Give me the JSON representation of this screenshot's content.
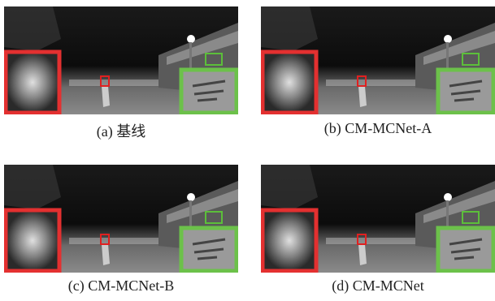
{
  "figure": {
    "panels": [
      {
        "caption": "(a) 基线"
      },
      {
        "caption": "(b) CM-MCNet-A"
      },
      {
        "caption": "(c) CM-MCNet-B"
      },
      {
        "caption": "(d) CM-MCNet"
      }
    ]
  }
}
